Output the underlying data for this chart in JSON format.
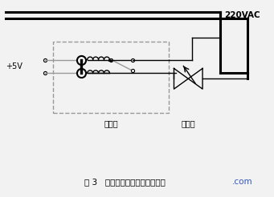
{
  "bg_color": "#f2f2f2",
  "line_color": "#000000",
  "gray_color": "#999999",
  "text_220vac": "220VAC",
  "text_5v": "+5V",
  "text_relay": "继电器",
  "text_solenoid": "电磁阀",
  "caption": "图 3   电磁阀与继电器接口示意图",
  "caption_com": ".com",
  "fig_width": 3.41,
  "fig_height": 2.46,
  "dpi": 100
}
